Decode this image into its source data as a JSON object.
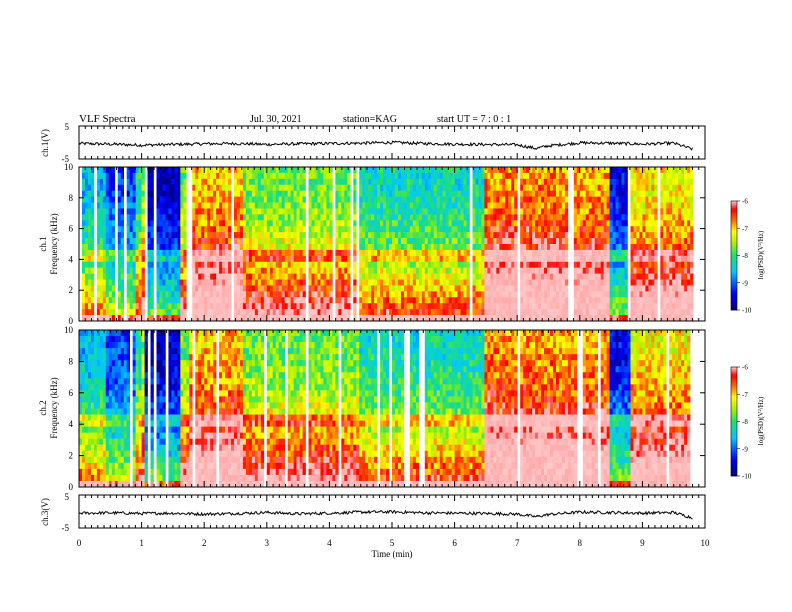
{
  "header": {
    "title": "VLF Spectra",
    "date": "Jul. 30, 2021",
    "station": "station=KAG",
    "start": "start  UT =   7 : 0  : 1"
  },
  "chart_data": [
    {
      "type": "line",
      "panel": "ch1-waveform",
      "ylabel": "ch.1(V)",
      "ylim": [
        -5,
        5
      ],
      "yticks": [
        "5",
        "-5"
      ],
      "xlim": [
        0,
        10
      ],
      "series": [
        {
          "x": [
            0,
            0.5,
            1,
            1.5,
            2,
            2.5,
            3,
            3.5,
            4,
            4.5,
            5,
            5.5,
            6,
            6.5,
            7,
            7.3,
            7.5,
            8,
            8.5,
            9,
            9.5,
            9.8
          ],
          "values": [
            -0.3,
            -0.5,
            -0.8,
            -0.6,
            -0.4,
            -0.3,
            -0.6,
            -0.4,
            -0.3,
            -0.2,
            0.0,
            -0.3,
            -0.5,
            -0.6,
            -0.7,
            -1.8,
            -1.0,
            -0.1,
            -0.2,
            -0.5,
            -0.2,
            -2.0
          ]
        }
      ]
    },
    {
      "type": "heatmap",
      "panel": "ch1-spectrogram",
      "ylabel": "ch.1\nFrequency  (kHz)",
      "ylim": [
        0,
        10
      ],
      "yticks": [
        "0",
        "2",
        "4",
        "6",
        "8",
        "10"
      ],
      "xlim": [
        0,
        10
      ],
      "colorbar": {
        "label": "log(PSD)(V²/Hz)",
        "range": [
          -10,
          -6
        ],
        "ticks": [
          "-6",
          "-7",
          "-8",
          "-9",
          "-10"
        ]
      },
      "segments": [
        {
          "x0": 0.0,
          "x1": 0.45,
          "level": -8.6
        },
        {
          "x0": 0.45,
          "x1": 0.9,
          "level": -9.2
        },
        {
          "x0": 0.9,
          "x1": 1.0,
          "level": -8.2
        },
        {
          "x0": 1.0,
          "x1": 1.05,
          "level": -7.6
        },
        {
          "x0": 1.05,
          "x1": 1.6,
          "level": -9.7
        },
        {
          "x0": 1.6,
          "x1": 1.75,
          "level": -7.8
        },
        {
          "x0": 1.75,
          "x1": 2.6,
          "level": -7.0
        },
        {
          "x0": 2.6,
          "x1": 4.5,
          "level": -7.8
        },
        {
          "x0": 4.5,
          "x1": 6.5,
          "level": -8.3
        },
        {
          "x0": 6.5,
          "x1": 7.6,
          "level": -6.8
        },
        {
          "x0": 7.6,
          "x1": 8.5,
          "level": -6.9
        },
        {
          "x0": 8.5,
          "x1": 8.8,
          "level": -9.5
        },
        {
          "x0": 8.8,
          "x1": 9.8,
          "level": -7.2
        }
      ]
    },
    {
      "type": "heatmap",
      "panel": "ch2-spectrogram",
      "ylabel": "ch.2\nFrequency  (kHz)",
      "ylim": [
        0,
        10
      ],
      "yticks": [
        "0",
        "2",
        "4",
        "6",
        "8",
        "10"
      ],
      "xlim": [
        0,
        10
      ],
      "colorbar": {
        "label": "log(PSD)(V²/Hz)",
        "range": [
          -10,
          -6
        ],
        "ticks": [
          "-6",
          "-7",
          "-8",
          "-9",
          "-10"
        ]
      }
    },
    {
      "type": "line",
      "panel": "ch3-waveform",
      "ylabel": "ch.3(V)",
      "ylim": [
        -5,
        5
      ],
      "yticks": [
        "5",
        "-5"
      ],
      "xlim": [
        0,
        10
      ],
      "series": [
        {
          "x": [
            0,
            0.5,
            1,
            1.5,
            2,
            2.5,
            3,
            3.5,
            4,
            4.5,
            5,
            5.5,
            6,
            6.5,
            7,
            7.3,
            7.5,
            8,
            8.5,
            9,
            9.5,
            9.8
          ],
          "values": [
            -0.5,
            -0.4,
            -0.6,
            -0.5,
            -0.8,
            -0.6,
            -0.3,
            -0.7,
            -0.5,
            -0.2,
            -0.1,
            -0.4,
            -0.5,
            -0.6,
            -0.8,
            -1.6,
            -0.9,
            -0.2,
            -0.3,
            -0.5,
            -0.3,
            -1.9
          ]
        }
      ]
    }
  ],
  "xaxis": {
    "label": "Time  (min)",
    "ticks": [
      "0",
      "1",
      "2",
      "3",
      "4",
      "5",
      "6",
      "7",
      "8",
      "9",
      "10"
    ]
  }
}
